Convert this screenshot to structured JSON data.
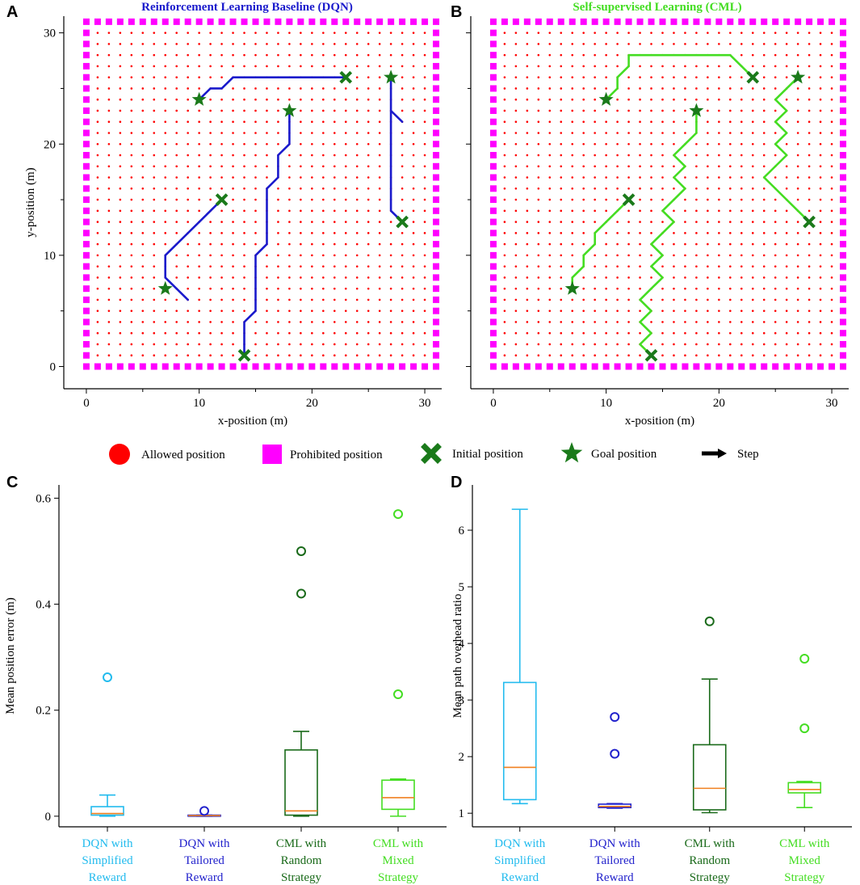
{
  "panel_letters": {
    "a": "A",
    "b": "B",
    "c": "C",
    "d": "D"
  },
  "legend": {
    "allowed": "Allowed position",
    "prohibited": "Prohibited position",
    "initial": "Initial position",
    "goal": "Goal position",
    "step": "Step"
  },
  "colors": {
    "allowed": "#ff0000",
    "prohibited": "#ff00ff",
    "marker": "#1a7a1a",
    "dqn_path": "#1a1acc",
    "cml_path": "#44dd22",
    "median": "#f08020",
    "cyan": "#22bbee",
    "blue": "#2222cc",
    "dark_green": "#1a6a1a",
    "light_green": "#44dd22"
  },
  "chart_data": [
    {
      "type": "line",
      "title": "Reinforcement Learning Baseline (DQN)",
      "xlabel": "x-position (m)",
      "ylabel": "y-position (m)",
      "xlim": [
        -2,
        31.5
      ],
      "ylim": [
        -2,
        31.5
      ],
      "xticks": [
        0,
        10,
        20,
        30
      ],
      "yticks": [
        0,
        10,
        20,
        30
      ],
      "grid_range": [
        0,
        31
      ],
      "paths": [
        [
          [
            10,
            24
          ],
          [
            11,
            25
          ],
          [
            12,
            25
          ],
          [
            13,
            26
          ],
          [
            23,
            26
          ]
        ],
        [
          [
            12,
            15
          ],
          [
            7,
            10
          ],
          [
            7,
            8
          ],
          [
            9,
            6
          ]
        ],
        [
          [
            14,
            1
          ],
          [
            14,
            4
          ],
          [
            15,
            5
          ],
          [
            15,
            10
          ],
          [
            16,
            11
          ],
          [
            16,
            16
          ],
          [
            17,
            17
          ],
          [
            17,
            19
          ],
          [
            18,
            20
          ],
          [
            18,
            23
          ]
        ],
        [
          [
            28,
            13
          ],
          [
            27,
            14
          ],
          [
            27,
            26
          ]
        ],
        [
          [
            27,
            23
          ],
          [
            28,
            22
          ]
        ]
      ],
      "initial_positions": [
        [
          23,
          26
        ],
        [
          12,
          15
        ],
        [
          14,
          1
        ],
        [
          28,
          13
        ]
      ],
      "goal_positions": [
        [
          10,
          24
        ],
        [
          27,
          26
        ],
        [
          18,
          23
        ],
        [
          7,
          7
        ]
      ]
    },
    {
      "type": "line",
      "title": "Self-supervised Learning (CML)",
      "xlabel": "x-position (m)",
      "ylabel": "",
      "xlim": [
        -2,
        31.5
      ],
      "ylim": [
        -2,
        31.5
      ],
      "xticks": [
        0,
        10,
        20,
        30
      ],
      "yticks": [],
      "grid_range": [
        0,
        31
      ],
      "paths": [
        [
          [
            10,
            24
          ],
          [
            11,
            25
          ],
          [
            11,
            26
          ],
          [
            12,
            27
          ],
          [
            12,
            28
          ],
          [
            21,
            28
          ],
          [
            23,
            26
          ]
        ],
        [
          [
            12,
            15
          ],
          [
            9,
            12
          ],
          [
            9,
            11
          ],
          [
            8,
            10
          ],
          [
            8,
            9
          ],
          [
            7,
            8
          ],
          [
            7,
            7
          ]
        ],
        [
          [
            14,
            1
          ],
          [
            13,
            2
          ],
          [
            14,
            3
          ],
          [
            13,
            4
          ],
          [
            14,
            5
          ],
          [
            13,
            6
          ],
          [
            14,
            7
          ],
          [
            15,
            8
          ],
          [
            14,
            9
          ],
          [
            15,
            10
          ],
          [
            14,
            11
          ],
          [
            15,
            12
          ],
          [
            16,
            13
          ],
          [
            15,
            14
          ],
          [
            16,
            15
          ],
          [
            17,
            16
          ],
          [
            16,
            17
          ],
          [
            17,
            18
          ],
          [
            16,
            19
          ],
          [
            17,
            20
          ],
          [
            18,
            21
          ],
          [
            18,
            23
          ]
        ],
        [
          [
            28,
            13
          ],
          [
            24,
            17
          ],
          [
            26,
            19
          ],
          [
            25,
            20
          ],
          [
            26,
            21
          ],
          [
            25,
            22
          ],
          [
            26,
            23
          ],
          [
            25,
            24
          ],
          [
            26,
            25
          ],
          [
            27,
            26
          ]
        ]
      ],
      "initial_positions": [
        [
          23,
          26
        ],
        [
          12,
          15
        ],
        [
          14,
          1
        ],
        [
          28,
          13
        ]
      ],
      "goal_positions": [
        [
          10,
          24
        ],
        [
          27,
          26
        ],
        [
          18,
          23
        ],
        [
          7,
          7
        ]
      ]
    },
    {
      "type": "box",
      "title": "",
      "xlabel": "",
      "ylabel": "Mean position error (m)",
      "ylim": [
        -0.02,
        0.625
      ],
      "yticks": [
        0,
        0.2,
        0.4,
        0.6
      ],
      "ytick_labels": [
        "0",
        "0.2",
        "0.4",
        "0.6"
      ],
      "series": [
        {
          "name": "DQN with Simplified Reward",
          "lines": [
            "DQN with",
            "Simplified",
            "Reward"
          ],
          "color": "#22bbee",
          "whislo": 0,
          "q1": 0.002,
          "med": 0.005,
          "q3": 0.018,
          "whishi": 0.04,
          "fliers": [
            0.262
          ]
        },
        {
          "name": "DQN with Tailored Reward",
          "lines": [
            "DQN with",
            "Tailored",
            "Reward"
          ],
          "color": "#2222cc",
          "whislo": 0,
          "q1": 0,
          "med": 0.001,
          "q3": 0.002,
          "whishi": 0.002,
          "fliers": [
            0.01
          ]
        },
        {
          "name": "CML with Random Strategy",
          "lines": [
            "CML with",
            "Random",
            "Strategy"
          ],
          "color": "#1a6a1a",
          "whislo": 0,
          "q1": 0.002,
          "med": 0.01,
          "q3": 0.125,
          "whishi": 0.16,
          "fliers": [
            0.5,
            0.42
          ]
        },
        {
          "name": "CML with Mixed Strategy",
          "lines": [
            "CML with",
            "Mixed",
            "Strategy"
          ],
          "color": "#44dd22",
          "whislo": 0,
          "q1": 0.013,
          "med": 0.035,
          "q3": 0.068,
          "whishi": 0.07,
          "fliers": [
            0.57,
            0.23
          ]
        }
      ]
    },
    {
      "type": "box",
      "title": "",
      "xlabel": "",
      "ylabel": "Mean path overhead ratio",
      "ylim": [
        0.76,
        6.8
      ],
      "yticks": [
        1,
        2,
        3,
        4,
        5,
        6
      ],
      "ytick_labels": [
        "1",
        "2",
        "3",
        "4",
        "5",
        "6"
      ],
      "series": [
        {
          "name": "DQN with Simplified Reward",
          "lines": [
            "DQN with",
            "Simplified",
            "Reward"
          ],
          "color": "#22bbee",
          "whislo": 1.17,
          "q1": 1.24,
          "med": 1.81,
          "q3": 3.31,
          "whishi": 6.37,
          "fliers": []
        },
        {
          "name": "DQN with Tailored Reward",
          "lines": [
            "DQN with",
            "Tailored",
            "Reward"
          ],
          "color": "#2222cc",
          "whislo": 1.09,
          "q1": 1.1,
          "med": 1.12,
          "q3": 1.16,
          "whishi": 1.17,
          "fliers": [
            2.7,
            2.05
          ]
        },
        {
          "name": "CML with Random Strategy",
          "lines": [
            "CML with",
            "Random",
            "Strategy"
          ],
          "color": "#1a6a1a",
          "whislo": 1.01,
          "q1": 1.06,
          "med": 1.44,
          "q3": 2.21,
          "whishi": 3.37,
          "fliers": [
            4.39
          ]
        },
        {
          "name": "CML with Mixed Strategy",
          "lines": [
            "CML with",
            "Mixed",
            "Strategy"
          ],
          "color": "#44dd22",
          "whislo": 1.1,
          "q1": 1.36,
          "med": 1.42,
          "q3": 1.54,
          "whishi": 1.56,
          "fliers": [
            3.73,
            2.5
          ]
        }
      ]
    }
  ]
}
